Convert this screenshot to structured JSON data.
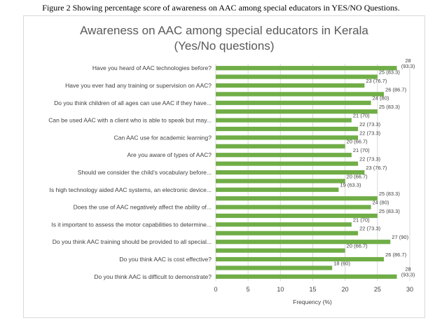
{
  "caption": "Figure 2 Showing percentage score of awareness on AAC among special educators in YES/NO Questions.",
  "chart_data": {
    "type": "bar",
    "orientation": "horizontal",
    "title": [
      "Awareness on AAC among special educators in Kerala",
      "(Yes/No questions)"
    ],
    "xlabel": "Frequency (%)",
    "ylabel": "",
    "xlim": [
      0,
      30
    ],
    "xticks": [
      0,
      5,
      10,
      15,
      20,
      25,
      30
    ],
    "grid": true,
    "legend": "none",
    "bar_color": "#70ad47",
    "categories": [
      "Have you heard of AAC technologies before?",
      "Have you ever had any training or supervision on AAC?",
      "Do you think children of all ages can use AAC if they have...",
      "Can be used AAC with a client who is able to speak but may...",
      "Can AAC use for academic learning?",
      "Are you aware of types of AAC?",
      "Should we consider the child’s vocabulary before...",
      "Is high technology aided AAC systems, an electronic device...",
      "Does the use of AAC negatively affect the ability of...",
      "Is it important to assess the motor capabilities to determine...",
      "Do you think AAC training should be provided to all special...",
      "Do you think AAC is cost effective?",
      "Do you think AAC is difficult to demonstrate?"
    ],
    "bars": [
      {
        "value": 28,
        "label": "28 (93.3)"
      },
      {
        "value": 25,
        "label": "25 (83.3)"
      },
      {
        "value": 23,
        "label": "23 (76.7)"
      },
      {
        "value": 26,
        "label": "26 (86.7)"
      },
      {
        "value": 24,
        "label": "24 (80)"
      },
      {
        "value": 25,
        "label": "25 (83.3)"
      },
      {
        "value": 21,
        "label": "21 (70)"
      },
      {
        "value": 22,
        "label": "22 (73.3)"
      },
      {
        "value": 22,
        "label": "22 (73.3)"
      },
      {
        "value": 20,
        "label": "20 (66.7)"
      },
      {
        "value": 21,
        "label": "21 (70)"
      },
      {
        "value": 22,
        "label": "22 (73.3)"
      },
      {
        "value": 23,
        "label": "23 (76.7)"
      },
      {
        "value": 20,
        "label": "20 (66.7)"
      },
      {
        "value": 19,
        "label": "19 (63.3)"
      },
      {
        "value": 25,
        "label": "25 (83.3)"
      },
      {
        "value": 24,
        "label": "24 (80)"
      },
      {
        "value": 25,
        "label": "25 (83.3)"
      },
      {
        "value": 21,
        "label": "21 (70)"
      },
      {
        "value": 22,
        "label": "22 (73.3)"
      },
      {
        "value": 27,
        "label": "27 (90)"
      },
      {
        "value": 20,
        "label": "20 (66.7)"
      },
      {
        "value": 26,
        "label": "26 (86.7)"
      },
      {
        "value": 18,
        "label": "18 (60)"
      },
      {
        "value": 28,
        "label": "28 (93.3)"
      }
    ]
  }
}
